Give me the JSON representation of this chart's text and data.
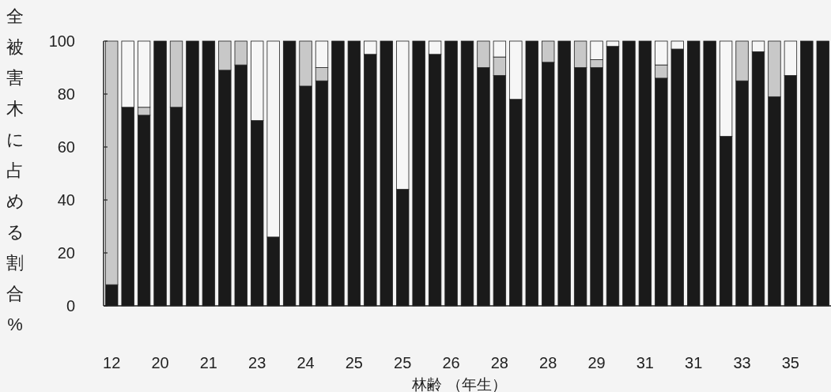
{
  "chart_data": {
    "type": "bar",
    "stacked": true,
    "xlabel": "林齢 （年生）",
    "ylabel": "全被害木に占める割合%",
    "categories": [
      "12",
      null,
      null,
      "20",
      null,
      null,
      "21",
      null,
      null,
      "23",
      null,
      null,
      "24",
      null,
      null,
      "25",
      null,
      null,
      "25",
      null,
      null,
      "26",
      null,
      null,
      "28",
      null,
      null,
      "28",
      null,
      null,
      "29",
      null,
      null,
      "31",
      null,
      null,
      "31",
      null,
      null,
      "33",
      null,
      null,
      "35",
      null,
      null
    ],
    "ylim": [
      0,
      100
    ],
    "yticks": [
      0,
      20,
      40,
      60,
      80,
      100
    ],
    "grid": false,
    "series": [
      {
        "color": "#1a1a1a",
        "values": [
          8,
          75,
          72,
          100,
          75,
          100,
          100,
          89,
          91,
          70,
          26,
          100,
          83,
          85,
          100,
          100,
          95,
          100,
          44,
          100,
          95,
          100,
          100,
          90,
          87,
          78,
          100,
          92,
          100,
          90,
          90,
          98,
          100,
          100,
          86,
          97,
          100,
          100,
          64,
          85,
          96,
          79,
          87,
          100,
          100
        ]
      },
      {
        "color": "#c8c8c8",
        "values": [
          92,
          0,
          3,
          0,
          25,
          0,
          0,
          11,
          9,
          0,
          0,
          0,
          17,
          5,
          0,
          0,
          0,
          0,
          0,
          0,
          0,
          0,
          0,
          10,
          7,
          0,
          0,
          8,
          0,
          10,
          3,
          0,
          0,
          0,
          5,
          0,
          0,
          0,
          0,
          15,
          0,
          21,
          0,
          0,
          0
        ]
      },
      {
        "color": "#f6f6f6",
        "values": [
          0,
          25,
          25,
          0,
          0,
          0,
          0,
          0,
          0,
          30,
          74,
          0,
          0,
          10,
          0,
          0,
          5,
          0,
          56,
          0,
          5,
          0,
          0,
          0,
          6,
          22,
          0,
          0,
          0,
          0,
          7,
          2,
          0,
          0,
          9,
          3,
          0,
          0,
          36,
          0,
          4,
          0,
          13,
          0,
          0
        ]
      }
    ]
  }
}
